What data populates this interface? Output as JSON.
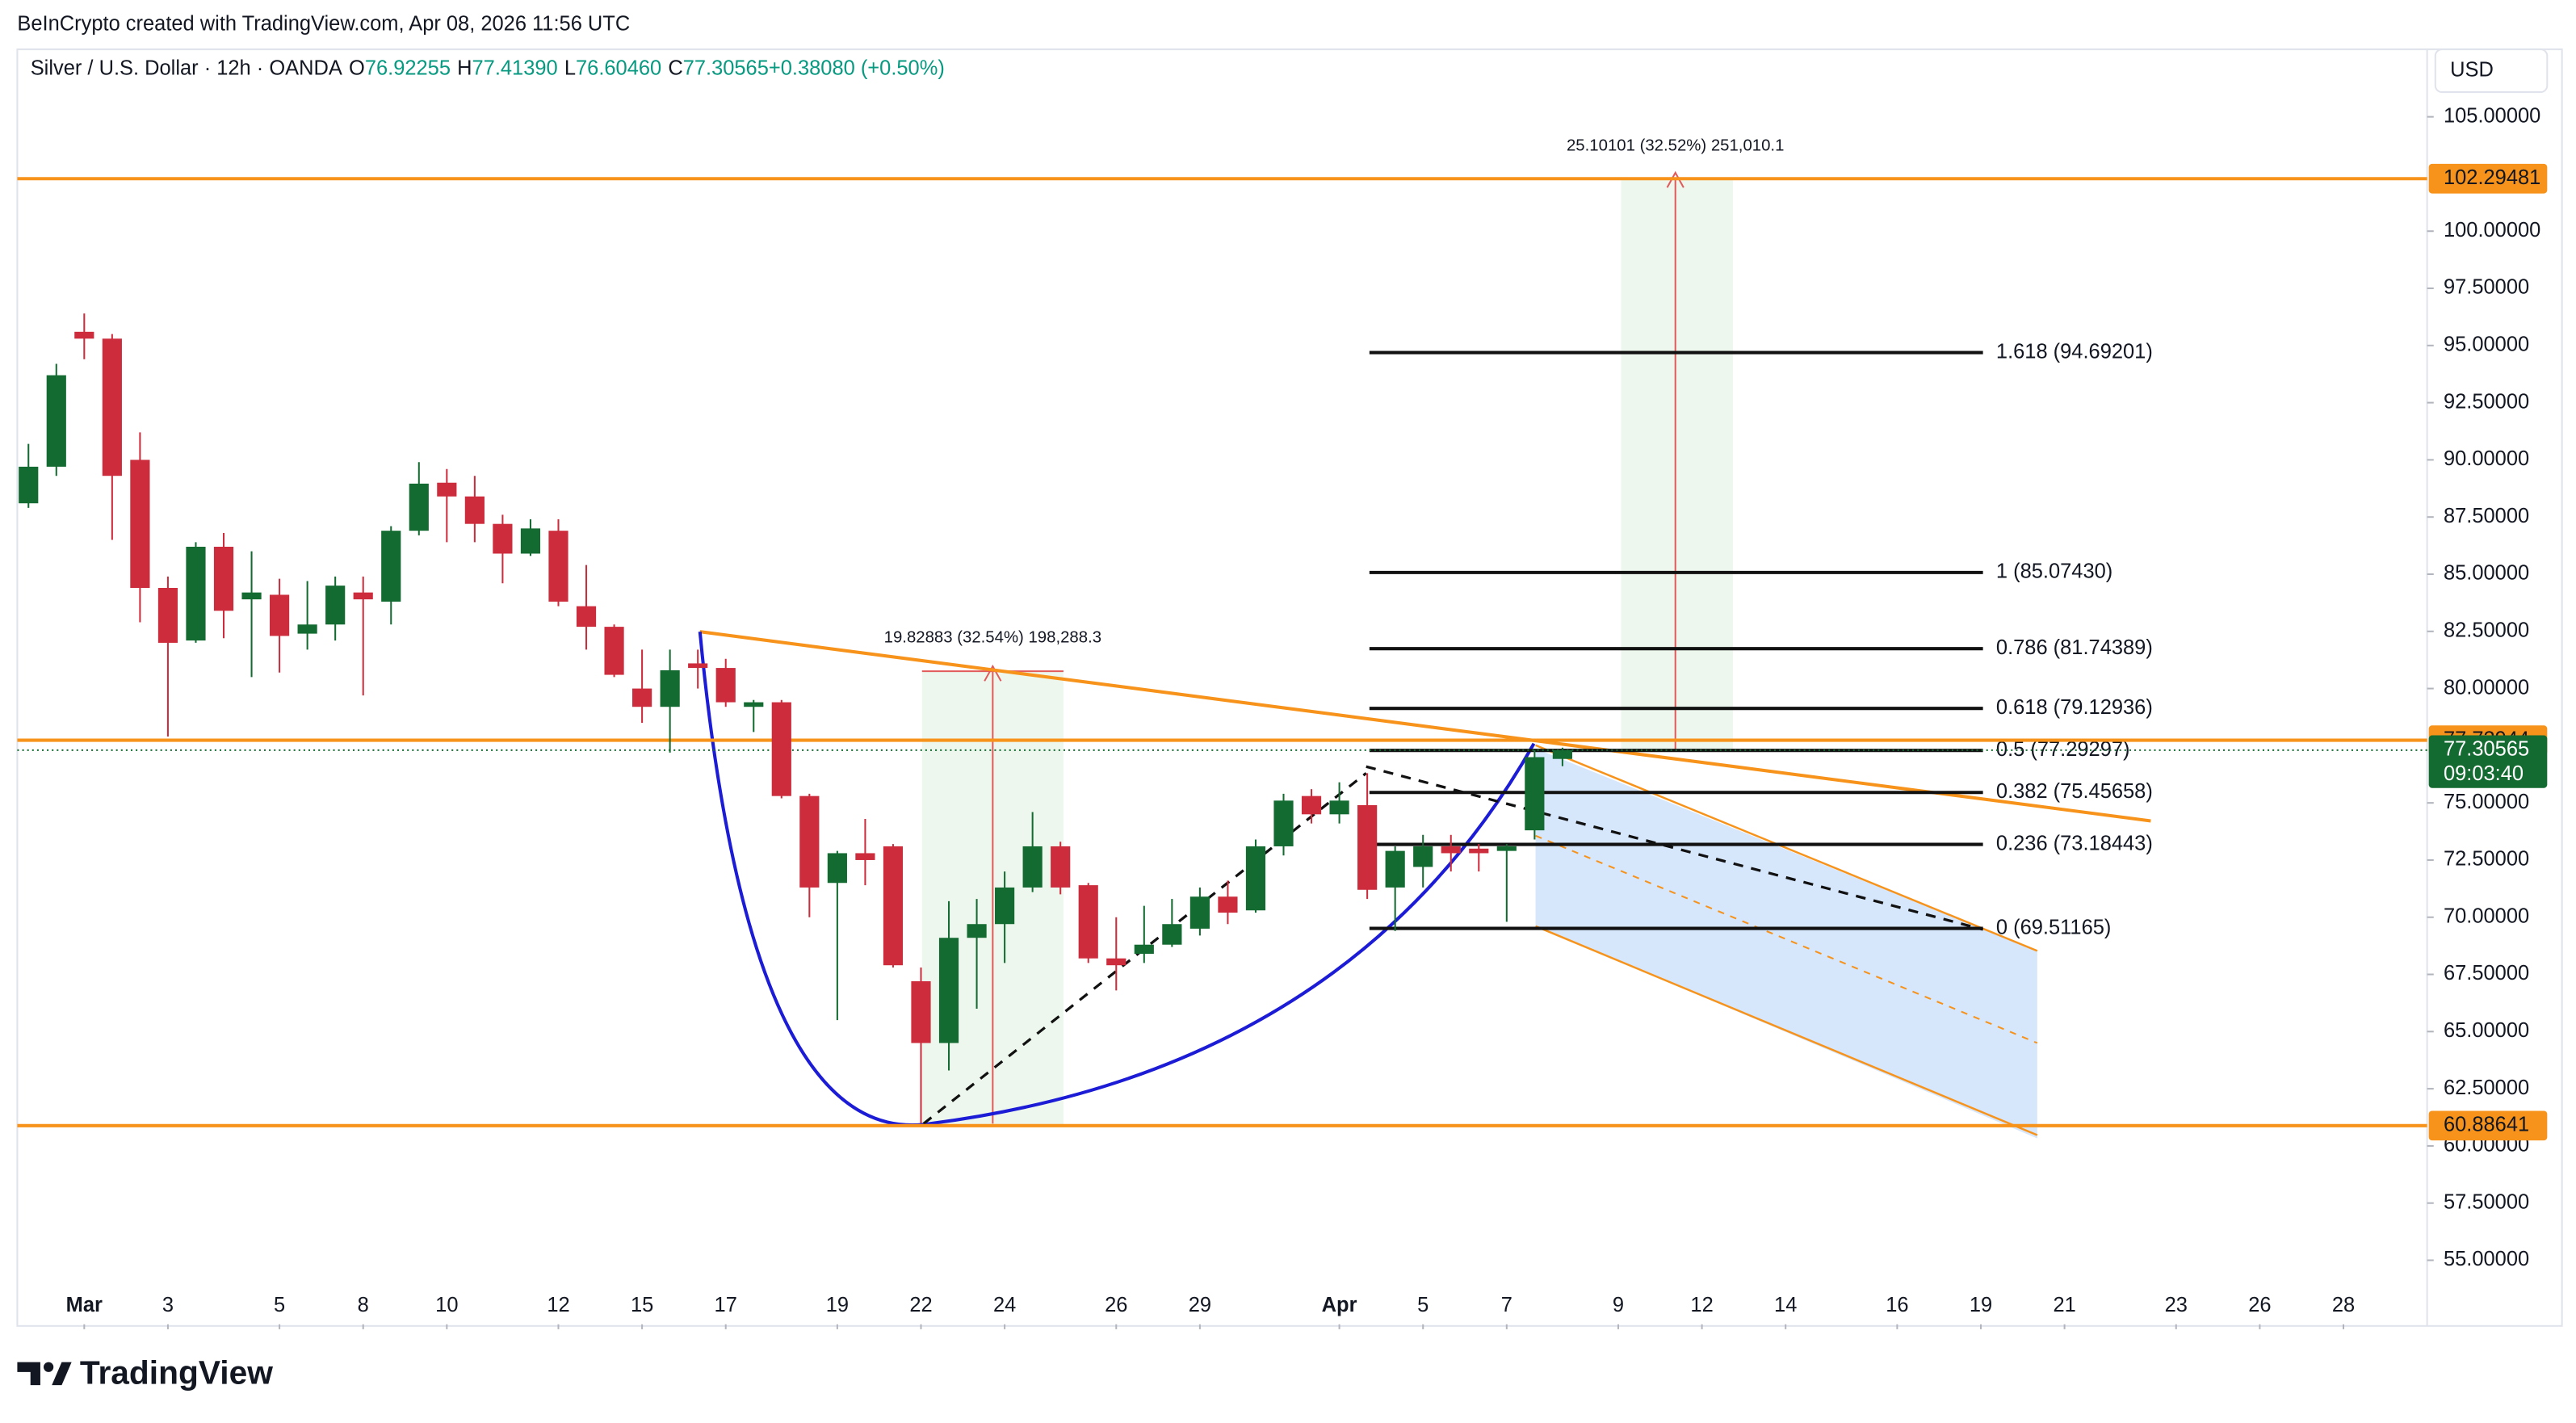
{
  "header": {
    "credit": "BeInCrypto created with TradingView.com, Apr 08, 2026 11:56 UTC",
    "brand": "TradingView"
  },
  "chart_data": {
    "type": "candlestick",
    "symbol": "Silver / U.S. Dollar · 12h · OANDA",
    "ohlc_legend": [
      {
        "key": "O",
        "text": "76.92255"
      },
      {
        "key": "H",
        "text": "77.41390"
      },
      {
        "key": "L",
        "text": "76.60460"
      },
      {
        "key": "C",
        "text": "77.30565"
      },
      {
        "key": "",
        "text": "+0.38080 (+0.50%)"
      }
    ],
    "currency": "USD",
    "open": [
      88.1,
      89.7,
      95.6,
      95.3,
      90.0,
      84.4,
      82.1,
      86.2,
      83.9,
      84.1,
      82.4,
      82.8,
      84.2,
      83.8,
      86.9,
      89.0,
      88.4,
      87.2,
      85.9,
      86.9,
      83.6,
      82.7,
      80.0,
      79.2,
      81.1,
      80.9,
      79.2,
      79.4,
      75.3,
      71.5,
      72.8,
      73.1,
      67.2,
      64.5,
      69.1,
      69.7,
      71.3,
      73.1,
      71.4,
      68.2,
      68.4,
      68.8,
      69.5,
      70.9,
      70.3,
      73.1,
      75.3,
      74.5,
      74.9,
      71.3,
      72.2,
      73.1,
      73.0,
      72.9,
      73.8,
      76.92255
    ],
    "high": [
      90.7,
      94.2,
      96.4,
      95.5,
      91.2,
      84.9,
      86.4,
      86.8,
      86.0,
      84.8,
      84.7,
      84.9,
      84.9,
      87.1,
      89.9,
      89.6,
      89.3,
      87.6,
      87.4,
      87.4,
      85.4,
      82.8,
      81.7,
      81.7,
      81.7,
      81.3,
      79.5,
      79.5,
      75.4,
      72.9,
      74.3,
      73.2,
      67.8,
      70.7,
      70.8,
      72.0,
      74.6,
      73.3,
      71.5,
      70.0,
      70.5,
      70.8,
      71.3,
      71.6,
      73.4,
      75.4,
      75.6,
      75.9,
      76.3,
      73.1,
      73.6,
      73.6,
      73.2,
      73.2,
      77.3,
      77.4139
    ],
    "low": [
      87.9,
      89.3,
      94.4,
      86.5,
      82.9,
      77.9,
      82.0,
      82.2,
      80.5,
      80.7,
      81.7,
      82.1,
      79.7,
      82.8,
      86.7,
      86.4,
      86.4,
      84.6,
      85.8,
      83.6,
      81.7,
      80.5,
      78.5,
      77.2,
      80.0,
      79.2,
      78.1,
      75.2,
      70.0,
      65.5,
      71.4,
      67.8,
      61.0,
      63.3,
      66.0,
      68.0,
      71.1,
      71.0,
      68.0,
      66.8,
      68.0,
      68.7,
      69.2,
      69.7,
      70.2,
      72.7,
      74.1,
      74.1,
      70.8,
      69.4,
      71.3,
      72.0,
      72.0,
      69.8,
      73.4,
      76.6046
    ],
    "close": [
      89.7,
      93.7,
      95.3,
      89.3,
      84.4,
      82.0,
      86.2,
      83.4,
      84.2,
      82.3,
      82.8,
      84.5,
      83.9,
      86.9,
      88.96,
      88.4,
      87.2,
      85.9,
      87.0,
      83.8,
      82.7,
      80.6,
      79.2,
      80.8,
      80.9,
      79.4,
      79.4,
      75.3,
      71.3,
      72.8,
      72.5,
      67.9,
      64.5,
      69.1,
      69.7,
      71.3,
      73.1,
      71.3,
      68.2,
      67.9,
      68.8,
      69.7,
      70.9,
      70.2,
      73.1,
      75.1,
      74.5,
      75.1,
      71.2,
      72.9,
      73.1,
      72.8,
      72.8,
      73.1,
      77.0,
      77.30565
    ],
    "up_color": "#136b31",
    "down_color": "#cc2c3c",
    "xlim": [
      -0.4,
      86
    ],
    "xticks": [
      {
        "value": 2,
        "label": "Mar"
      },
      {
        "value": 5,
        "label": "3"
      },
      {
        "value": 9,
        "label": "5"
      },
      {
        "value": 12,
        "label": "8"
      },
      {
        "value": 15,
        "label": "10"
      },
      {
        "value": 19,
        "label": "12"
      },
      {
        "value": 22,
        "label": "15"
      },
      {
        "value": 25,
        "label": "17"
      },
      {
        "value": 29,
        "label": "19"
      },
      {
        "value": 32,
        "label": "22"
      },
      {
        "value": 35,
        "label": "24"
      },
      {
        "value": 39,
        "label": "26"
      },
      {
        "value": 42,
        "label": "29"
      },
      {
        "value": 47,
        "label": "Apr"
      },
      {
        "value": 50,
        "label": "5"
      },
      {
        "value": 53,
        "label": "7"
      },
      {
        "value": 57,
        "label": "9"
      },
      {
        "value": 60,
        "label": "12"
      },
      {
        "value": 63,
        "label": "14"
      },
      {
        "value": 67,
        "label": "16"
      },
      {
        "value": 70,
        "label": "19"
      },
      {
        "value": 73,
        "label": "21"
      },
      {
        "value": 77,
        "label": "23"
      },
      {
        "value": 80,
        "label": "26"
      },
      {
        "value": 83,
        "label": "28"
      }
    ],
    "ylim": [
      52.2,
      107.95
    ],
    "yticks": [
      {
        "value": 105,
        "label": "105.00000"
      },
      {
        "value": 100,
        "label": "100.00000"
      },
      {
        "value": 97.5,
        "label": "97.50000"
      },
      {
        "value": 95,
        "label": "95.00000"
      },
      {
        "value": 92.5,
        "label": "92.50000"
      },
      {
        "value": 90,
        "label": "90.00000"
      },
      {
        "value": 87.5,
        "label": "87.50000"
      },
      {
        "value": 85,
        "label": "85.00000"
      },
      {
        "value": 82.5,
        "label": "82.50000"
      },
      {
        "value": 80,
        "label": "80.00000"
      },
      {
        "value": 75,
        "label": "75.00000"
      },
      {
        "value": 72.5,
        "label": "72.50000"
      },
      {
        "value": 70,
        "label": "70.00000"
      },
      {
        "value": 67.5,
        "label": "67.50000"
      },
      {
        "value": 65,
        "label": "65.00000"
      },
      {
        "value": 62.5,
        "label": "62.50000"
      },
      {
        "value": 60,
        "label": "60.00000"
      },
      {
        "value": 57.5,
        "label": "57.50000"
      },
      {
        "value": 55,
        "label": "55.00000"
      }
    ],
    "hlines": [
      102.29481,
      77.73944,
      60.88641
    ],
    "hline_color": "#f7931a",
    "last_price": 77.30565,
    "countdown": "09:03:40",
    "fib_levels": [
      {
        "value": 94.69201,
        "label": "1.618 (94.69201)"
      },
      {
        "value": 85.0743,
        "label": "1 (85.07430)"
      },
      {
        "value": 81.74389,
        "label": "0.786 (81.74389)"
      },
      {
        "value": 79.12936,
        "label": "0.618 (79.12936)"
      },
      {
        "value": 77.29297,
        "label": "0.5 (77.29297)"
      },
      {
        "value": 75.45658,
        "label": "0.382 (75.45658)"
      },
      {
        "value": 73.18443,
        "label": "0.236 (73.18443)"
      },
      {
        "value": 69.51165,
        "label": "0 (69.51165)"
      }
    ],
    "measure_labels": [
      "19.82883 (32.54%) 198,288.3",
      "25.10101 (32.52%) 251,010.1"
    ]
  }
}
